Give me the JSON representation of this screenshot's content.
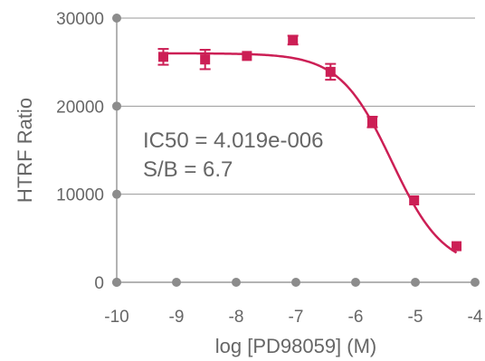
{
  "chart_data": {
    "type": "scatter",
    "xlabel": "log [PD98059] (M)",
    "ylabel": "HTRF Ratio",
    "xlim": [
      -10,
      -4
    ],
    "ylim": [
      0,
      30000
    ],
    "x_ticks": [
      -10,
      -9,
      -8,
      -7,
      -6,
      -5,
      -4
    ],
    "x_tick_labels": [
      "-10",
      "-9",
      "-8",
      "-7",
      "-6",
      "-5",
      "-4"
    ],
    "y_ticks": [
      0,
      10000,
      20000,
      30000
    ],
    "y_tick_labels": [
      "0",
      "10000",
      "20000",
      "30000"
    ],
    "grid": "horizontal",
    "annotations": [
      "IC50 = 4.019e-006",
      "S/B = 6.7"
    ],
    "color": "#cc1f55",
    "points": [
      {
        "x": -9.22,
        "y": 25600,
        "err": 900
      },
      {
        "x": -8.52,
        "y": 25300,
        "err": 1100
      },
      {
        "x": -7.82,
        "y": 25700,
        "err": 0
      },
      {
        "x": -7.05,
        "y": 27500,
        "err": 500
      },
      {
        "x": -6.42,
        "y": 23900,
        "err": 900
      },
      {
        "x": -5.72,
        "y": 18200,
        "err": 600
      },
      {
        "x": -5.02,
        "y": 9300,
        "err": 0
      },
      {
        "x": -4.31,
        "y": 4100,
        "err": 0
      }
    ],
    "fit": {
      "top": 26000,
      "bottom": 1500,
      "log_ic50": -5.396,
      "hill": 1.0
    }
  }
}
